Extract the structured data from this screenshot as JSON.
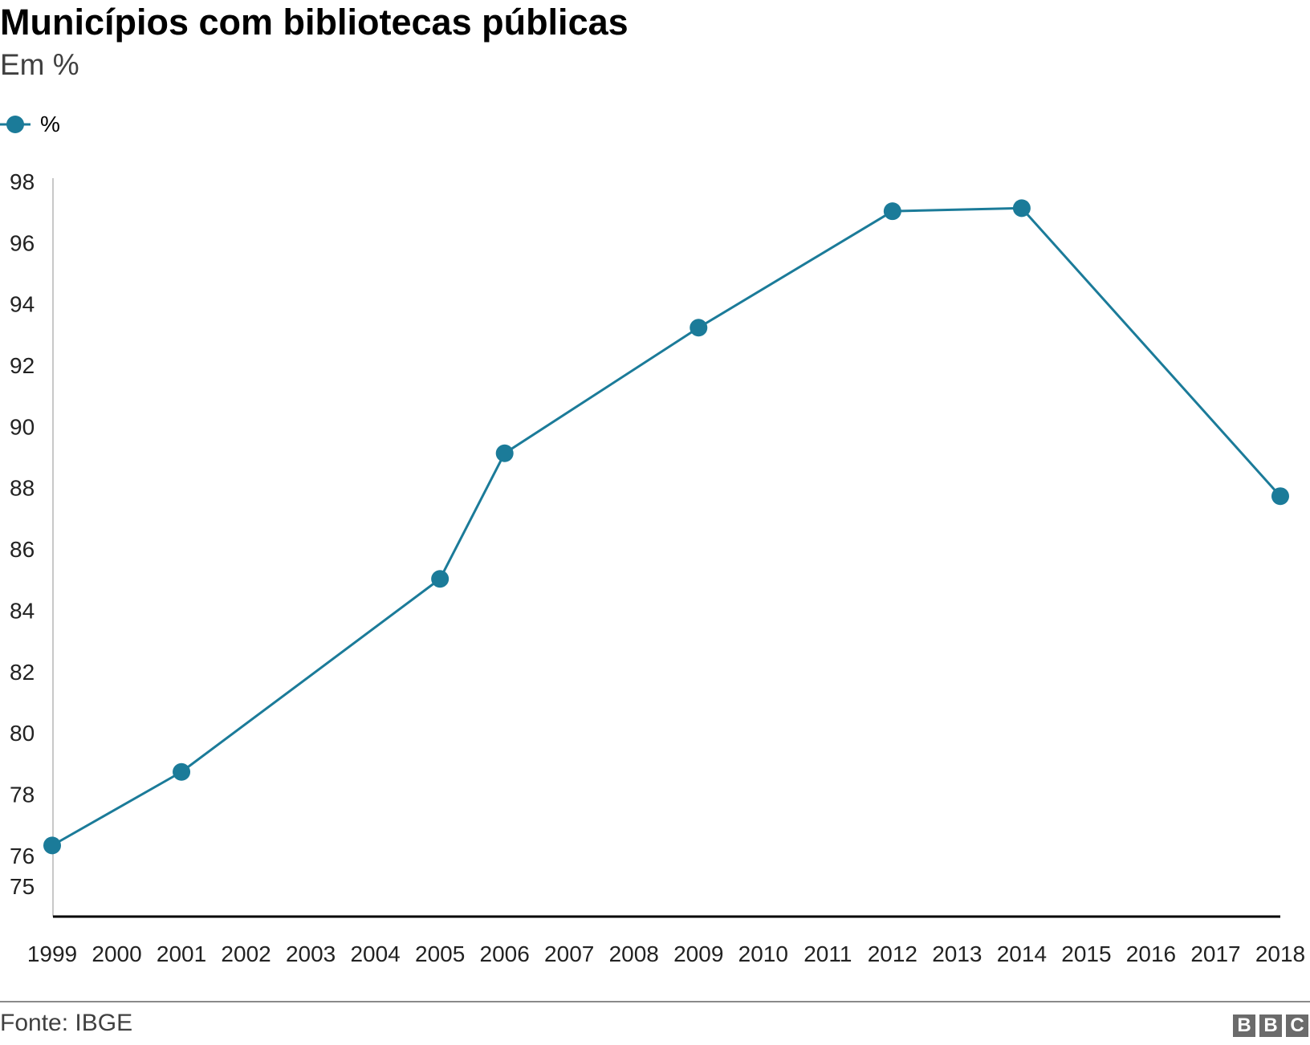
{
  "chart_data": {
    "type": "line",
    "title": "Municípios com bibliotecas públicas",
    "subtitle": "Em %",
    "categories": [
      "1999",
      "2000",
      "2001",
      "2002",
      "2003",
      "2004",
      "2005",
      "2006",
      "2007",
      "2008",
      "2009",
      "2010",
      "2011",
      "2012",
      "2013",
      "2014",
      "2015",
      "2016",
      "2017",
      "2018"
    ],
    "series": [
      {
        "name": "%",
        "color": "#1b7b99",
        "points": [
          {
            "x": "1999",
            "y": 76.3
          },
          {
            "x": "2001",
            "y": 78.7
          },
          {
            "x": "2005",
            "y": 85.0
          },
          {
            "x": "2006",
            "y": 89.1
          },
          {
            "x": "2009",
            "y": 93.2
          },
          {
            "x": "2012",
            "y": 97.0
          },
          {
            "x": "2014",
            "y": 97.1
          },
          {
            "x": "2018",
            "y": 87.7
          }
        ]
      }
    ],
    "y_ticks": [
      75,
      76,
      78,
      80,
      82,
      84,
      86,
      88,
      90,
      92,
      94,
      96,
      98
    ],
    "ylim": [
      75,
      98
    ],
    "xlabel": "",
    "ylabel": "",
    "grid": false,
    "legend": "top-left",
    "source": "Fonte: IBGE",
    "brand_letters": [
      "B",
      "B",
      "C"
    ]
  }
}
